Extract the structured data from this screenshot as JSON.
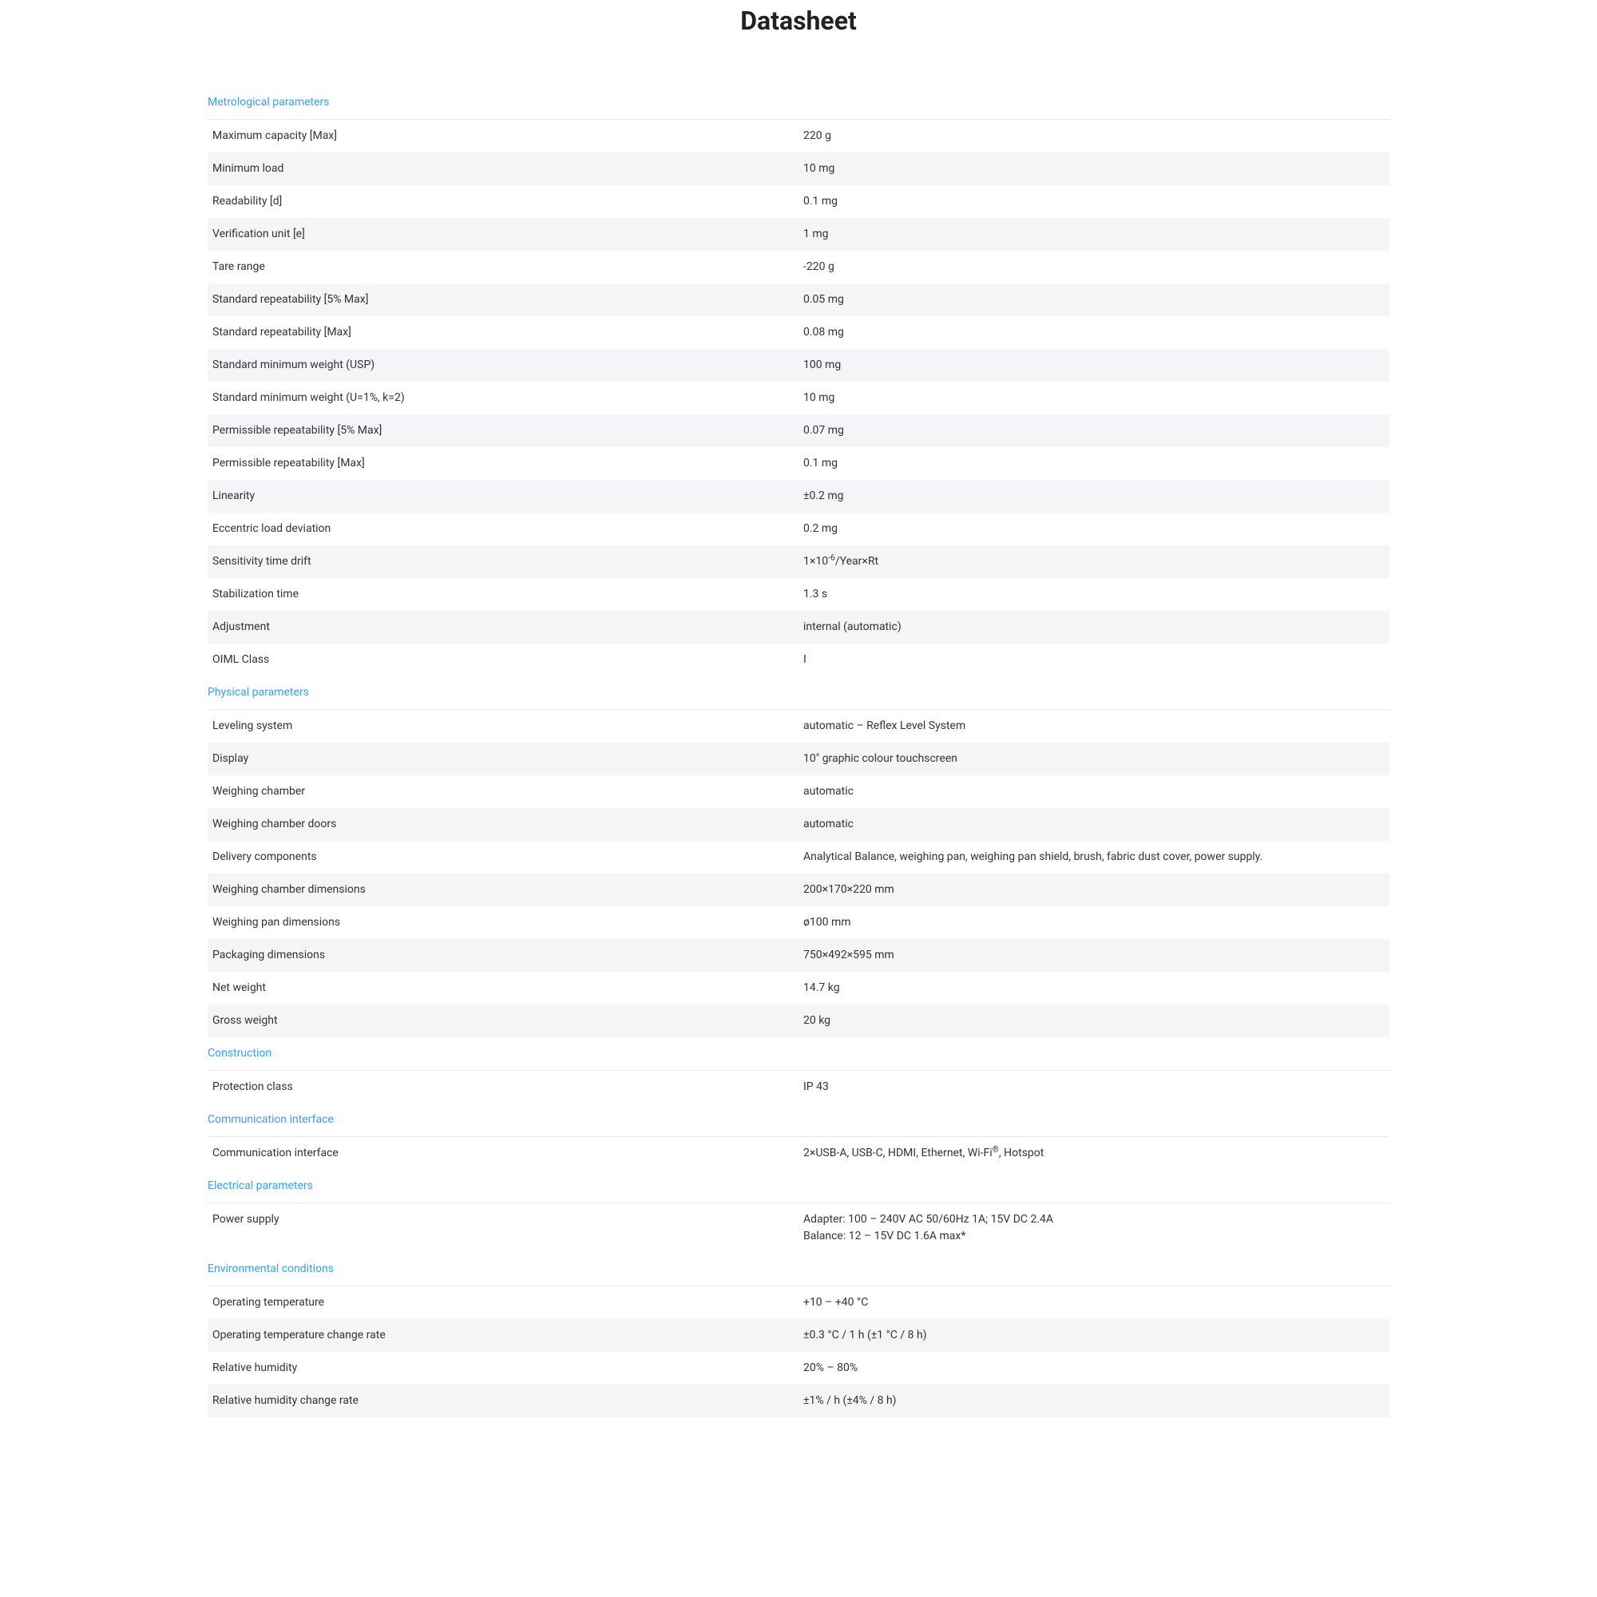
{
  "title": "Datasheet",
  "sections": [
    {
      "heading": "Metrological parameters",
      "rows": [
        {
          "label": "Maximum capacity [Max]",
          "value": "220 g"
        },
        {
          "label": "Minimum load",
          "value": "10 mg"
        },
        {
          "label": "Readability [d]",
          "value": "0.1 mg"
        },
        {
          "label": "Verification unit [e]",
          "value": "1 mg"
        },
        {
          "label": "Tare range",
          "value": "-220 g"
        },
        {
          "label": "Standard repeatability [5% Max]",
          "value": "0.05 mg"
        },
        {
          "label": "Standard repeatability [Max]",
          "value": "0.08 mg"
        },
        {
          "label": "Standard minimum weight (USP)",
          "value": "100 mg"
        },
        {
          "label": "Standard minimum weight (U=1%, k=2)",
          "value": "10 mg"
        },
        {
          "label": "Permissible repeatability [5% Max]",
          "value": "0.07 mg"
        },
        {
          "label": "Permissible repeatability [Max]",
          "value": "0.1 mg"
        },
        {
          "label": "Linearity",
          "value": "±0.2 mg"
        },
        {
          "label": "Eccentric load deviation",
          "value": "0.2 mg"
        },
        {
          "label": "Sensitivity time drift",
          "value_html": "1×10<sup>-6</sup>/Year×Rt"
        },
        {
          "label": "Stabilization time",
          "value": "1.3 s"
        },
        {
          "label": "Adjustment",
          "value": "internal (automatic)"
        },
        {
          "label": "OIML Class",
          "value": "I"
        }
      ]
    },
    {
      "heading": "Physical parameters",
      "rows": [
        {
          "label": "Leveling system",
          "value": "automatic – Reflex Level System"
        },
        {
          "label": "Display",
          "value": "10\" graphic colour touchscreen"
        },
        {
          "label": "Weighing chamber",
          "value": "automatic"
        },
        {
          "label": "Weighing chamber doors",
          "value": "automatic"
        },
        {
          "label": "Delivery components",
          "value": "Analytical Balance, weighing pan, weighing pan shield, brush, fabric dust cover, power supply."
        },
        {
          "label": "Weighing chamber dimensions",
          "value": "200×170×220 mm"
        },
        {
          "label": "Weighing pan dimensions",
          "value": "ø100 mm"
        },
        {
          "label": "Packaging dimensions",
          "value": "750×492×595 mm"
        },
        {
          "label": "Net weight",
          "value": "14.7 kg"
        },
        {
          "label": "Gross weight",
          "value": "20 kg"
        }
      ]
    },
    {
      "heading": "Construction",
      "rows": [
        {
          "label": "Protection class",
          "value": "IP 43"
        }
      ]
    },
    {
      "heading": "Communication interface",
      "rows": [
        {
          "label": "Communication interface",
          "value_html": "2×USB-A, USB-C, HDMI, Ethernet, Wi-Fi<sup>®</sup>, Hotspot"
        }
      ]
    },
    {
      "heading": "Electrical parameters",
      "rows": [
        {
          "label": "Power supply",
          "value_html": "Adapter: 100 – 240V AC 50/60Hz 1A; 15V DC 2.4A<br>Balance: 12 – 15V DC 1.6A max*"
        }
      ]
    },
    {
      "heading": "Environmental conditions",
      "rows": [
        {
          "label": "Operating temperature",
          "value": "+10 – +40 °C"
        },
        {
          "label": "Operating temperature change rate",
          "value": "±0.3 °C / 1 h (±1 °C / 8 h)"
        },
        {
          "label": "Relative humidity",
          "value": "20% – 80%"
        },
        {
          "label": "Relative humidity change rate",
          "value": "±1% / h (±4% / 8 h)"
        }
      ]
    }
  ],
  "colors": {
    "section_heading": "#3aa0e8",
    "row_stripe": "#f4f5f6",
    "text": "#333333",
    "border": "#e8e8e8"
  }
}
